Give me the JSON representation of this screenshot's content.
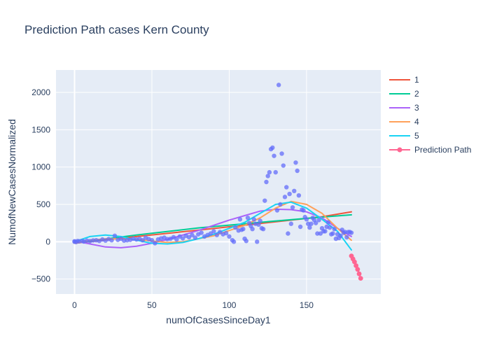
{
  "chart_data": {
    "type": "scatter",
    "title": "Prediction Path cases Kern County",
    "xlabel": "numOfCasesSinceDay1",
    "ylabel": "NumofNewCasesNormalized",
    "xlim": [
      -12,
      198
    ],
    "ylim": [
      -700,
      2300
    ],
    "xticks": [
      "0",
      "50",
      "100",
      "150"
    ],
    "yticks": [
      "2000",
      "1500",
      "1000",
      "500",
      "0",
      "−500"
    ],
    "x_tick_values": [
      0,
      50,
      100,
      150
    ],
    "y_tick_values": [
      2000,
      1500,
      1000,
      500,
      0,
      -500
    ],
    "grid": true,
    "legend_position": "right",
    "background": "#e5ecf6",
    "observed": {
      "color": "#636efa",
      "points": [
        [
          0,
          0
        ],
        [
          0,
          6
        ],
        [
          1,
          -4
        ],
        [
          2,
          10
        ],
        [
          3,
          5
        ],
        [
          5,
          10
        ],
        [
          6,
          3
        ],
        [
          8,
          15
        ],
        [
          10,
          8
        ],
        [
          12,
          18
        ],
        [
          14,
          20
        ],
        [
          16,
          10
        ],
        [
          18,
          30
        ],
        [
          20,
          15
        ],
        [
          22,
          35
        ],
        [
          24,
          20
        ],
        [
          26,
          80
        ],
        [
          28,
          25
        ],
        [
          30,
          40
        ],
        [
          32,
          15
        ],
        [
          34,
          20
        ],
        [
          36,
          25
        ],
        [
          38,
          40
        ],
        [
          40,
          30
        ],
        [
          42,
          40
        ],
        [
          44,
          20
        ],
        [
          46,
          55
        ],
        [
          48,
          35
        ],
        [
          50,
          20
        ],
        [
          52,
          -20
        ],
        [
          54,
          30
        ],
        [
          56,
          45
        ],
        [
          58,
          55
        ],
        [
          60,
          35
        ],
        [
          62,
          40
        ],
        [
          64,
          60
        ],
        [
          66,
          30
        ],
        [
          68,
          70
        ],
        [
          70,
          45
        ],
        [
          72,
          80
        ],
        [
          74,
          60
        ],
        [
          76,
          90
        ],
        [
          78,
          55
        ],
        [
          80,
          100
        ],
        [
          82,
          120
        ],
        [
          84,
          70
        ],
        [
          86,
          90
        ],
        [
          88,
          110
        ],
        [
          90,
          140
        ],
        [
          92,
          90
        ],
        [
          94,
          130
        ],
        [
          96,
          100
        ],
        [
          98,
          115
        ],
        [
          100,
          70
        ],
        [
          102,
          20
        ],
        [
          103,
          0
        ],
        [
          104,
          190
        ],
        [
          106,
          150
        ],
        [
          107,
          300
        ],
        [
          108,
          160
        ],
        [
          109,
          170
        ],
        [
          110,
          40
        ],
        [
          111,
          10
        ],
        [
          112,
          320
        ],
        [
          113,
          250
        ],
        [
          114,
          210
        ],
        [
          115,
          170
        ],
        [
          116,
          300
        ],
        [
          117,
          240
        ],
        [
          118,
          0
        ],
        [
          119,
          230
        ],
        [
          120,
          280
        ],
        [
          121,
          180
        ],
        [
          122,
          170
        ],
        [
          123,
          550
        ],
        [
          124,
          800
        ],
        [
          125,
          880
        ],
        [
          126,
          930
        ],
        [
          127,
          1240
        ],
        [
          128,
          1260
        ],
        [
          129,
          1150
        ],
        [
          130,
          930
        ],
        [
          131,
          420
        ],
        [
          132,
          2100
        ],
        [
          133,
          500
        ],
        [
          134,
          1180
        ],
        [
          135,
          1020
        ],
        [
          136,
          600
        ],
        [
          137,
          730
        ],
        [
          138,
          110
        ],
        [
          139,
          640
        ],
        [
          140,
          240
        ],
        [
          141,
          460
        ],
        [
          142,
          680
        ],
        [
          143,
          1060
        ],
        [
          144,
          950
        ],
        [
          145,
          620
        ],
        [
          146,
          200
        ],
        [
          147,
          430
        ],
        [
          148,
          420
        ],
        [
          149,
          330
        ],
        [
          150,
          300
        ],
        [
          151,
          240
        ],
        [
          152,
          190
        ],
        [
          153,
          240
        ],
        [
          154,
          320
        ],
        [
          155,
          290
        ],
        [
          156,
          250
        ],
        [
          157,
          110
        ],
        [
          158,
          290
        ],
        [
          159,
          110
        ],
        [
          160,
          180
        ],
        [
          161,
          140
        ],
        [
          162,
          140
        ],
        [
          163,
          200
        ],
        [
          164,
          260
        ],
        [
          165,
          190
        ],
        [
          166,
          100
        ],
        [
          167,
          110
        ],
        [
          168,
          170
        ],
        [
          169,
          40
        ],
        [
          170,
          100
        ],
        [
          171,
          50
        ],
        [
          172,
          80
        ],
        [
          173,
          160
        ],
        [
          174,
          120
        ],
        [
          175,
          130
        ],
        [
          176,
          60
        ],
        [
          177,
          130
        ],
        [
          178,
          130
        ],
        [
          179,
          120
        ]
      ]
    },
    "series": [
      {
        "name": "1",
        "color": "#ef553b",
        "x": [
          0,
          40,
          80,
          120,
          160,
          179
        ],
        "y": [
          -20,
          70,
          155,
          245,
          335,
          400
        ]
      },
      {
        "name": "2",
        "color": "#00cc96",
        "x": [
          0,
          40,
          80,
          120,
          160,
          179
        ],
        "y": [
          -15,
          90,
          185,
          260,
          330,
          360
        ]
      },
      {
        "name": "3",
        "color": "#ab63fa",
        "x": [
          0,
          10,
          20,
          30,
          40,
          50,
          60,
          70,
          80,
          90,
          100,
          110,
          120,
          130,
          140,
          150,
          160,
          170,
          179
        ],
        "y": [
          10,
          -30,
          -70,
          -80,
          -60,
          -20,
          30,
          90,
          150,
          220,
          290,
          350,
          410,
          435,
          430,
          400,
          320,
          180,
          70
        ]
      },
      {
        "name": "4",
        "color": "#ffa15a",
        "x": [
          0,
          10,
          20,
          30,
          40,
          50,
          60,
          70,
          80,
          90,
          100,
          110,
          120,
          130,
          140,
          150,
          160,
          170,
          179
        ],
        "y": [
          -20,
          20,
          40,
          40,
          30,
          10,
          -10,
          0,
          40,
          80,
          150,
          220,
          320,
          450,
          540,
          500,
          380,
          180,
          20
        ]
      },
      {
        "name": "5",
        "color": "#19d3f3",
        "x": [
          0,
          10,
          20,
          30,
          40,
          50,
          60,
          70,
          80,
          90,
          100,
          110,
          120,
          130,
          140,
          150,
          160,
          170,
          179
        ],
        "y": [
          0,
          70,
          90,
          70,
          20,
          -20,
          -30,
          -10,
          40,
          100,
          180,
          260,
          380,
          500,
          530,
          450,
          300,
          140,
          -110
        ]
      },
      {
        "name": "Prediction Path",
        "color": "#ff6692",
        "mode": "lines+markers",
        "x": [
          179,
          180,
          181,
          182,
          183,
          184,
          185
        ],
        "y": [
          -190,
          -230,
          -270,
          -320,
          -370,
          -430,
          -490
        ]
      }
    ]
  }
}
